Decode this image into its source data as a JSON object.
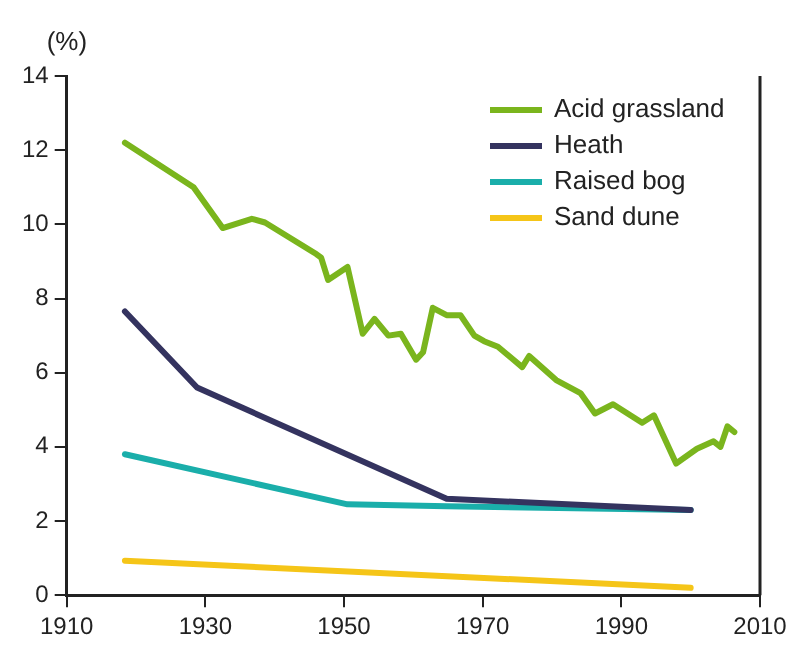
{
  "chart_data": {
    "type": "line",
    "ylabel": "(%)",
    "xlim": [
      1910,
      2010
    ],
    "xticks": [
      1910,
      1930,
      1950,
      1970,
      1990,
      2010
    ],
    "ylim": [
      0,
      14
    ],
    "yticks": [
      0,
      2,
      4,
      6,
      8,
      10,
      12,
      14
    ],
    "grid": false,
    "legend": "top right",
    "marker": "none",
    "line_style": "solid",
    "series": [
      {
        "name": "Acid grassland",
        "color": "#7ab51d",
        "x": [
          1918.4,
          1928.3,
          1932.5,
          1936.7,
          1938.6,
          1946,
          1946.7,
          1947.7,
          1950.5,
          1952.7,
          1954.4,
          1956.4,
          1958.2,
          1960.4,
          1961.4,
          1962.8,
          1964.8,
          1966.8,
          1968.8,
          1970.2,
          1972.2,
          1975.7,
          1976.7,
          1980.6,
          1984.1,
          1986.2,
          1988.8,
          1993,
          1994.7,
          1997.9,
          2000.9,
          2003.3,
          2004.3,
          2005.3,
          2006.3
        ],
        "values": [
          12.2,
          11,
          9.9,
          10.15,
          10.05,
          9.2,
          9.1,
          8.5,
          8.85,
          7.05,
          7.45,
          7,
          7.05,
          6.35,
          6.55,
          7.75,
          7.55,
          7.55,
          7,
          6.85,
          6.7,
          6.15,
          6.45,
          5.8,
          5.45,
          4.9,
          5.15,
          4.65,
          4.85,
          3.55,
          3.95,
          4.15,
          4,
          4.55,
          4.4
        ]
      },
      {
        "name": "Heath",
        "color": "#34335f",
        "x": [
          1918.4,
          1928.8,
          1964.8,
          2000
        ],
        "values": [
          7.65,
          5.6,
          2.6,
          2.3
        ]
      },
      {
        "name": "Raised bog",
        "color": "#1aaeaa",
        "x": [
          1918.4,
          1950.5,
          1964.8,
          2000
        ],
        "values": [
          3.8,
          2.45,
          2.4,
          2.3
        ]
      },
      {
        "name": "Sand dune",
        "color": "#f5c518",
        "x": [
          1918.4,
          2000
        ],
        "values": [
          0.93,
          0.2
        ]
      }
    ]
  }
}
